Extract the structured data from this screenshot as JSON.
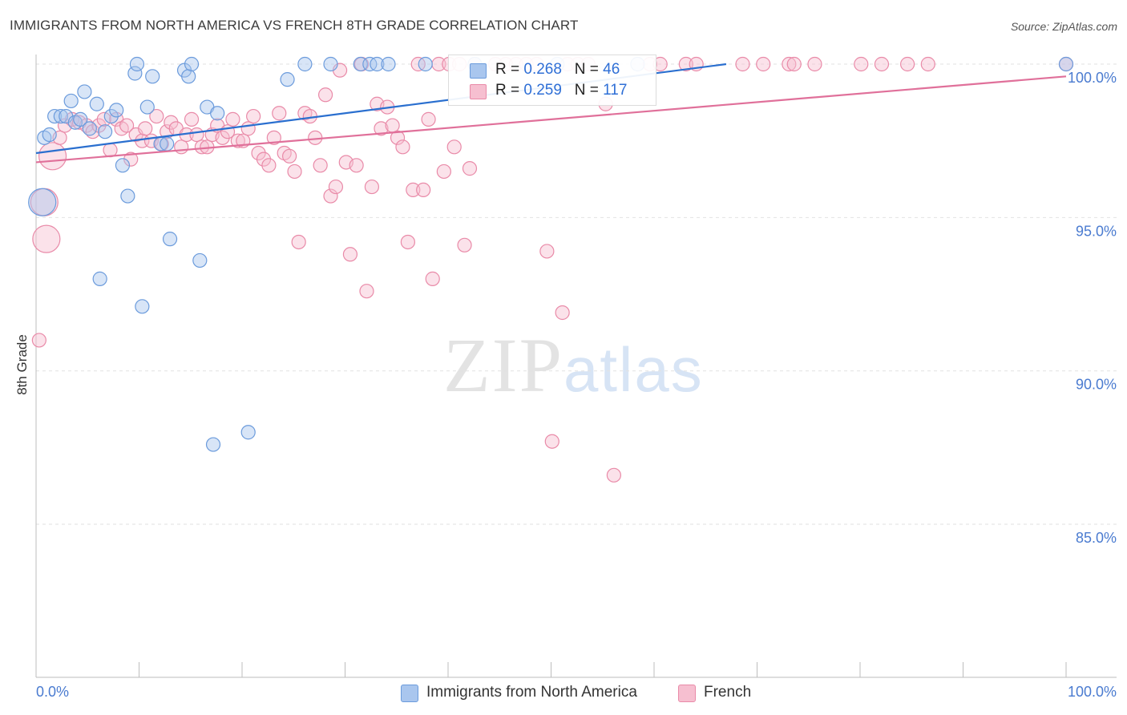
{
  "title": "IMMIGRANTS FROM NORTH AMERICA VS FRENCH 8TH GRADE CORRELATION CHART",
  "source": "Source: ZipAtlas.com",
  "watermark": {
    "zip": "ZIP",
    "atlas": "atlas"
  },
  "legend": {
    "rows": [
      {
        "r_label": "R = ",
        "r_value": "0.268",
        "n_label": "N = ",
        "n_value": "46"
      },
      {
        "r_label": "R = ",
        "r_value": "0.259",
        "n_label": "N = ",
        "n_value": "117"
      }
    ]
  },
  "colors": {
    "blue_fill": "#a9c6ee",
    "blue_stroke": "#6b9bdc",
    "blue_line": "#2a6fcf",
    "pink_fill": "#f6bfd0",
    "pink_stroke": "#e98aa8",
    "pink_line": "#e0709a",
    "grid": "#e2e2e2"
  },
  "chart_data": {
    "type": "scatter",
    "title": "IMMIGRANTS FROM NORTH AMERICA VS FRENCH 8TH GRADE CORRELATION CHART",
    "xlabel": "",
    "ylabel": "8th Grade",
    "xlim": [
      0,
      100
    ],
    "ylim": [
      80.5,
      100.7
    ],
    "x_tick_labels": [
      {
        "value": 0,
        "label": "0.0%"
      },
      {
        "value": 100,
        "label": "100.0%"
      }
    ],
    "y_ticks": [
      {
        "value": 100,
        "label": "100.0%"
      },
      {
        "value": 95,
        "label": "95.0%"
      },
      {
        "value": 90,
        "label": "90.0%"
      },
      {
        "value": 85,
        "label": "85.0%"
      }
    ],
    "x_minor_ticks": [
      0,
      10,
      20,
      30,
      40,
      50,
      60,
      70,
      80,
      90,
      100
    ],
    "series": [
      {
        "name": "Immigrants from North America",
        "color": "#a9c6ee",
        "trend": {
          "x": [
            0,
            67
          ],
          "y": [
            97.1,
            100.0
          ]
        },
        "points": [
          {
            "x": 0.6,
            "y": 95.5,
            "s": 2
          },
          {
            "x": 0.8,
            "y": 97.6,
            "s": 1
          },
          {
            "x": 1.3,
            "y": 97.7,
            "s": 1
          },
          {
            "x": 1.8,
            "y": 98.3,
            "s": 1
          },
          {
            "x": 2.4,
            "y": 98.3,
            "s": 1
          },
          {
            "x": 2.9,
            "y": 98.3,
            "s": 1
          },
          {
            "x": 3.4,
            "y": 98.8,
            "s": 1
          },
          {
            "x": 3.8,
            "y": 98.1,
            "s": 1
          },
          {
            "x": 4.3,
            "y": 98.2,
            "s": 1
          },
          {
            "x": 4.7,
            "y": 99.1,
            "s": 1
          },
          {
            "x": 5.2,
            "y": 97.9,
            "s": 1
          },
          {
            "x": 5.9,
            "y": 98.7,
            "s": 1
          },
          {
            "x": 6.7,
            "y": 97.8,
            "s": 1
          },
          {
            "x": 7.3,
            "y": 98.3,
            "s": 1
          },
          {
            "x": 7.8,
            "y": 98.5,
            "s": 1
          },
          {
            "x": 8.4,
            "y": 96.7,
            "s": 1
          },
          {
            "x": 8.9,
            "y": 95.7,
            "s": 1
          },
          {
            "x": 9.6,
            "y": 99.7,
            "s": 1
          },
          {
            "x": 9.8,
            "y": 100.0,
            "s": 1
          },
          {
            "x": 10.3,
            "y": 92.1,
            "s": 1
          },
          {
            "x": 10.8,
            "y": 98.6,
            "s": 1
          },
          {
            "x": 11.3,
            "y": 99.6,
            "s": 1
          },
          {
            "x": 12.1,
            "y": 97.4,
            "s": 1
          },
          {
            "x": 12.7,
            "y": 97.4,
            "s": 1
          },
          {
            "x": 13.0,
            "y": 94.3,
            "s": 1
          },
          {
            "x": 14.4,
            "y": 99.8,
            "s": 1
          },
          {
            "x": 14.8,
            "y": 99.6,
            "s": 1
          },
          {
            "x": 15.1,
            "y": 100.0,
            "s": 1
          },
          {
            "x": 15.9,
            "y": 93.6,
            "s": 1
          },
          {
            "x": 16.6,
            "y": 98.6,
            "s": 1
          },
          {
            "x": 17.2,
            "y": 87.6,
            "s": 1
          },
          {
            "x": 17.6,
            "y": 98.4,
            "s": 1
          },
          {
            "x": 20.6,
            "y": 88.0,
            "s": 1
          },
          {
            "x": 24.4,
            "y": 99.5,
            "s": 1
          },
          {
            "x": 26.1,
            "y": 100.0,
            "s": 1
          },
          {
            "x": 28.6,
            "y": 100.0,
            "s": 1
          },
          {
            "x": 31.5,
            "y": 100.0,
            "s": 1
          },
          {
            "x": 32.4,
            "y": 100.0,
            "s": 1
          },
          {
            "x": 33.1,
            "y": 100.0,
            "s": 1
          },
          {
            "x": 34.2,
            "y": 100.0,
            "s": 1
          },
          {
            "x": 37.8,
            "y": 100.0,
            "s": 1
          },
          {
            "x": 42.6,
            "y": 100.0,
            "s": 1
          },
          {
            "x": 50.6,
            "y": 100.0,
            "s": 1
          },
          {
            "x": 58.4,
            "y": 100.0,
            "s": 1
          },
          {
            "x": 100.0,
            "y": 100.0,
            "s": 1
          },
          {
            "x": 6.2,
            "y": 93.0,
            "s": 1
          }
        ]
      },
      {
        "name": "French",
        "color": "#f6bfd0",
        "trend": {
          "x": [
            0,
            100
          ],
          "y": [
            96.8,
            99.6
          ]
        },
        "points": [
          {
            "x": 0.3,
            "y": 91.0,
            "s": 1
          },
          {
            "x": 0.8,
            "y": 95.5,
            "s": 2
          },
          {
            "x": 1.0,
            "y": 94.3,
            "s": 2
          },
          {
            "x": 1.6,
            "y": 97.0,
            "s": 2
          },
          {
            "x": 2.3,
            "y": 97.6,
            "s": 1
          },
          {
            "x": 2.8,
            "y": 98.0,
            "s": 1
          },
          {
            "x": 3.5,
            "y": 98.2,
            "s": 1
          },
          {
            "x": 4.2,
            "y": 98.1,
            "s": 1
          },
          {
            "x": 4.9,
            "y": 98.0,
            "s": 1
          },
          {
            "x": 5.5,
            "y": 97.8,
            "s": 1
          },
          {
            "x": 6.1,
            "y": 98.0,
            "s": 1
          },
          {
            "x": 6.6,
            "y": 98.2,
            "s": 1
          },
          {
            "x": 7.2,
            "y": 97.2,
            "s": 1
          },
          {
            "x": 7.8,
            "y": 98.2,
            "s": 1
          },
          {
            "x": 8.3,
            "y": 97.9,
            "s": 1
          },
          {
            "x": 8.8,
            "y": 98.0,
            "s": 1
          },
          {
            "x": 9.2,
            "y": 96.9,
            "s": 1
          },
          {
            "x": 9.7,
            "y": 97.7,
            "s": 1
          },
          {
            "x": 10.3,
            "y": 97.5,
            "s": 1
          },
          {
            "x": 10.6,
            "y": 97.9,
            "s": 1
          },
          {
            "x": 11.2,
            "y": 97.5,
            "s": 1
          },
          {
            "x": 11.7,
            "y": 98.3,
            "s": 1
          },
          {
            "x": 12.2,
            "y": 97.4,
            "s": 1
          },
          {
            "x": 12.7,
            "y": 97.8,
            "s": 1
          },
          {
            "x": 13.1,
            "y": 98.1,
            "s": 1
          },
          {
            "x": 13.6,
            "y": 97.9,
            "s": 1
          },
          {
            "x": 14.1,
            "y": 97.3,
            "s": 1
          },
          {
            "x": 14.6,
            "y": 97.7,
            "s": 1
          },
          {
            "x": 15.1,
            "y": 98.2,
            "s": 1
          },
          {
            "x": 15.6,
            "y": 97.7,
            "s": 1
          },
          {
            "x": 16.1,
            "y": 97.3,
            "s": 1
          },
          {
            "x": 16.6,
            "y": 97.3,
            "s": 1
          },
          {
            "x": 17.1,
            "y": 97.7,
            "s": 1
          },
          {
            "x": 17.6,
            "y": 98.0,
            "s": 1
          },
          {
            "x": 18.1,
            "y": 97.6,
            "s": 1
          },
          {
            "x": 18.6,
            "y": 97.8,
            "s": 1
          },
          {
            "x": 19.1,
            "y": 98.2,
            "s": 1
          },
          {
            "x": 19.6,
            "y": 97.5,
            "s": 1
          },
          {
            "x": 20.1,
            "y": 97.5,
            "s": 1
          },
          {
            "x": 20.6,
            "y": 97.9,
            "s": 1
          },
          {
            "x": 21.1,
            "y": 98.3,
            "s": 1
          },
          {
            "x": 21.6,
            "y": 97.1,
            "s": 1
          },
          {
            "x": 22.1,
            "y": 96.9,
            "s": 1
          },
          {
            "x": 22.6,
            "y": 96.7,
            "s": 1
          },
          {
            "x": 23.1,
            "y": 97.6,
            "s": 1
          },
          {
            "x": 23.6,
            "y": 98.4,
            "s": 1
          },
          {
            "x": 24.1,
            "y": 97.1,
            "s": 1
          },
          {
            "x": 24.6,
            "y": 97.0,
            "s": 1
          },
          {
            "x": 25.1,
            "y": 96.5,
            "s": 1
          },
          {
            "x": 25.5,
            "y": 94.2,
            "s": 1
          },
          {
            "x": 26.1,
            "y": 98.4,
            "s": 1
          },
          {
            "x": 26.6,
            "y": 98.3,
            "s": 1
          },
          {
            "x": 27.1,
            "y": 97.6,
            "s": 1
          },
          {
            "x": 27.6,
            "y": 96.7,
            "s": 1
          },
          {
            "x": 28.1,
            "y": 99.0,
            "s": 1
          },
          {
            "x": 28.6,
            "y": 95.7,
            "s": 1
          },
          {
            "x": 29.1,
            "y": 96.0,
            "s": 1
          },
          {
            "x": 29.5,
            "y": 99.8,
            "s": 1
          },
          {
            "x": 30.1,
            "y": 96.8,
            "s": 1
          },
          {
            "x": 30.5,
            "y": 93.8,
            "s": 1
          },
          {
            "x": 31.1,
            "y": 96.7,
            "s": 1
          },
          {
            "x": 31.6,
            "y": 100.0,
            "s": 1
          },
          {
            "x": 32.1,
            "y": 92.6,
            "s": 1
          },
          {
            "x": 32.6,
            "y": 96.0,
            "s": 1
          },
          {
            "x": 33.1,
            "y": 98.7,
            "s": 1
          },
          {
            "x": 33.5,
            "y": 97.9,
            "s": 1
          },
          {
            "x": 34.1,
            "y": 98.6,
            "s": 1
          },
          {
            "x": 34.6,
            "y": 98.0,
            "s": 1
          },
          {
            "x": 35.1,
            "y": 97.6,
            "s": 1
          },
          {
            "x": 35.6,
            "y": 97.3,
            "s": 1
          },
          {
            "x": 36.1,
            "y": 94.2,
            "s": 1
          },
          {
            "x": 36.6,
            "y": 95.9,
            "s": 1
          },
          {
            "x": 37.1,
            "y": 100.0,
            "s": 1
          },
          {
            "x": 37.6,
            "y": 95.9,
            "s": 1
          },
          {
            "x": 38.1,
            "y": 98.2,
            "s": 1
          },
          {
            "x": 38.5,
            "y": 93.0,
            "s": 1
          },
          {
            "x": 39.1,
            "y": 100.0,
            "s": 1
          },
          {
            "x": 39.6,
            "y": 96.5,
            "s": 1
          },
          {
            "x": 40.1,
            "y": 100.0,
            "s": 1
          },
          {
            "x": 40.6,
            "y": 97.3,
            "s": 1
          },
          {
            "x": 41.1,
            "y": 100.0,
            "s": 1
          },
          {
            "x": 41.6,
            "y": 94.1,
            "s": 1
          },
          {
            "x": 42.1,
            "y": 96.6,
            "s": 1
          },
          {
            "x": 42.6,
            "y": 100.0,
            "s": 1
          },
          {
            "x": 44.6,
            "y": 100.0,
            "s": 1
          },
          {
            "x": 45.6,
            "y": 100.0,
            "s": 1
          },
          {
            "x": 46.6,
            "y": 100.0,
            "s": 1
          },
          {
            "x": 47.6,
            "y": 100.0,
            "s": 1
          },
          {
            "x": 48.6,
            "y": 100.0,
            "s": 1
          },
          {
            "x": 49.6,
            "y": 93.9,
            "s": 1
          },
          {
            "x": 50.1,
            "y": 87.7,
            "s": 1
          },
          {
            "x": 51.1,
            "y": 91.9,
            "s": 1
          },
          {
            "x": 51.6,
            "y": 100.0,
            "s": 1
          },
          {
            "x": 52.6,
            "y": 100.0,
            "s": 1
          },
          {
            "x": 53.6,
            "y": 100.0,
            "s": 1
          },
          {
            "x": 55.3,
            "y": 98.7,
            "s": 1
          },
          {
            "x": 56.1,
            "y": 86.6,
            "s": 1
          },
          {
            "x": 59.6,
            "y": 100.0,
            "s": 1
          },
          {
            "x": 60.6,
            "y": 100.0,
            "s": 1
          },
          {
            "x": 63.1,
            "y": 100.0,
            "s": 1
          },
          {
            "x": 64.1,
            "y": 100.0,
            "s": 1
          },
          {
            "x": 68.6,
            "y": 100.0,
            "s": 1
          },
          {
            "x": 70.6,
            "y": 100.0,
            "s": 1
          },
          {
            "x": 73.1,
            "y": 100.0,
            "s": 1
          },
          {
            "x": 73.6,
            "y": 100.0,
            "s": 1
          },
          {
            "x": 75.6,
            "y": 100.0,
            "s": 1
          },
          {
            "x": 80.1,
            "y": 100.0,
            "s": 1
          },
          {
            "x": 82.1,
            "y": 100.0,
            "s": 1
          },
          {
            "x": 84.6,
            "y": 100.0,
            "s": 1
          },
          {
            "x": 86.6,
            "y": 100.0,
            "s": 1
          },
          {
            "x": 100.0,
            "y": 100.0,
            "s": 1
          }
        ]
      }
    ]
  }
}
